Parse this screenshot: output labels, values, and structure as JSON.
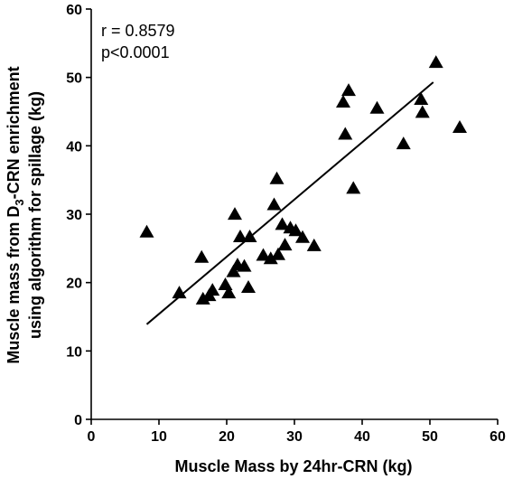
{
  "chart_data": {
    "type": "scatter",
    "xlabel": "Muscle Mass by 24hr-CRN (kg)",
    "ylabel_parts": {
      "line1_pre": "Muscle mass from D",
      "line1_sub": "3",
      "line1_post": "-CRN enrichment",
      "line2": "using algorithm for spillage (kg)"
    },
    "annotations": [
      "r = 0.8579",
      "p<0.0001"
    ],
    "xlim": [
      0,
      60
    ],
    "ylim": [
      0,
      60
    ],
    "xticks": [
      0,
      10,
      20,
      30,
      40,
      50,
      60
    ],
    "yticks": [
      0,
      10,
      20,
      30,
      40,
      50,
      60
    ],
    "grid": false,
    "marker": "triangle",
    "points": [
      {
        "x": 8.2,
        "y": 27.3
      },
      {
        "x": 13.0,
        "y": 18.4
      },
      {
        "x": 16.3,
        "y": 23.6
      },
      {
        "x": 16.5,
        "y": 17.5
      },
      {
        "x": 17.4,
        "y": 18.0
      },
      {
        "x": 17.9,
        "y": 18.8
      },
      {
        "x": 19.8,
        "y": 19.6
      },
      {
        "x": 20.3,
        "y": 18.4
      },
      {
        "x": 21.0,
        "y": 21.5
      },
      {
        "x": 21.2,
        "y": 29.9
      },
      {
        "x": 21.6,
        "y": 22.5
      },
      {
        "x": 22.0,
        "y": 26.6
      },
      {
        "x": 22.6,
        "y": 22.3
      },
      {
        "x": 23.2,
        "y": 19.2
      },
      {
        "x": 23.4,
        "y": 26.6
      },
      {
        "x": 25.4,
        "y": 23.9
      },
      {
        "x": 26.5,
        "y": 23.4
      },
      {
        "x": 27.0,
        "y": 31.3
      },
      {
        "x": 27.4,
        "y": 35.1
      },
      {
        "x": 27.6,
        "y": 24.0
      },
      {
        "x": 28.2,
        "y": 28.4
      },
      {
        "x": 28.6,
        "y": 25.4
      },
      {
        "x": 29.4,
        "y": 27.9
      },
      {
        "x": 30.2,
        "y": 27.5
      },
      {
        "x": 31.2,
        "y": 26.5
      },
      {
        "x": 32.9,
        "y": 25.3
      },
      {
        "x": 37.2,
        "y": 46.3
      },
      {
        "x": 37.5,
        "y": 41.6
      },
      {
        "x": 38.0,
        "y": 48.0
      },
      {
        "x": 38.7,
        "y": 33.7
      },
      {
        "x": 42.2,
        "y": 45.4
      },
      {
        "x": 46.1,
        "y": 40.2
      },
      {
        "x": 48.7,
        "y": 46.7
      },
      {
        "x": 48.9,
        "y": 44.8
      },
      {
        "x": 50.9,
        "y": 52.1
      },
      {
        "x": 54.4,
        "y": 42.6
      }
    ],
    "fit_line": {
      "x": [
        8.2,
        50.5
      ],
      "y": [
        13.9,
        49.3
      ]
    }
  }
}
